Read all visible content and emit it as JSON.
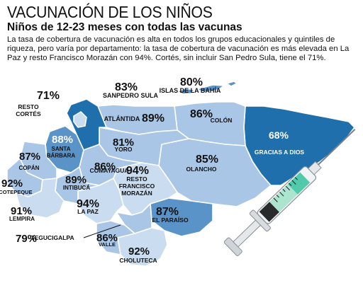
{
  "header": {
    "title": "VACUNACIÓN DE LOS NIÑOS",
    "subtitle": "Niños de 12-23 meses con todas las vacunas",
    "description": "La tasa de cobertura de vacunación es alta en todos los grupos educacionales y quintiles de riqueza, pero varía por departamento: la tasa de cobertura de vacunación es más elevada en La Paz y resto Francisco Morazán con 94%. Cortés, sin incluir San Pedro Sula, tiene el 71%."
  },
  "colors": {
    "dark": "#1f6fad",
    "medium": "#5a93c8",
    "light": "#a9c6e6",
    "lighter": "#c9dcf0",
    "border": "#ffffff"
  },
  "regions": [
    {
      "name": "SANPEDRO SULA",
      "pct": "83%"
    },
    {
      "name": "RESTO CORTÉS",
      "pct": "71%"
    },
    {
      "name": "ISLAS DE LA BAHÍA",
      "pct": "80%"
    },
    {
      "name": "ATLÁNTIDA",
      "pct": "89%"
    },
    {
      "name": "COLÓN",
      "pct": "86%"
    },
    {
      "name": "GRACIAS A DIOS",
      "pct": "68%"
    },
    {
      "name": "SANTA BÁRBARA",
      "pct": "88%"
    },
    {
      "name": "YORO",
      "pct": "81%"
    },
    {
      "name": "OLANCHO",
      "pct": "85%"
    },
    {
      "name": "COPÁN",
      "pct": "87%"
    },
    {
      "name": "COMAYAGUA",
      "pct": "86%"
    },
    {
      "name": "OCOTEPEQUE",
      "pct": "92%"
    },
    {
      "name": "INTIBUCÁ",
      "pct": "89%"
    },
    {
      "name": "RESTO FRANCISCO MORAZÁN",
      "pct": "94%"
    },
    {
      "name": "LEMPIRA",
      "pct": "91%"
    },
    {
      "name": "LA PAZ",
      "pct": "94%"
    },
    {
      "name": "EL PARAÍSO",
      "pct": "87%"
    },
    {
      "name": "TEGUCIGALPA",
      "pct": "79%"
    },
    {
      "name": "VALLE",
      "pct": "86%"
    },
    {
      "name": "CHOLUTECA",
      "pct": "92%"
    }
  ]
}
